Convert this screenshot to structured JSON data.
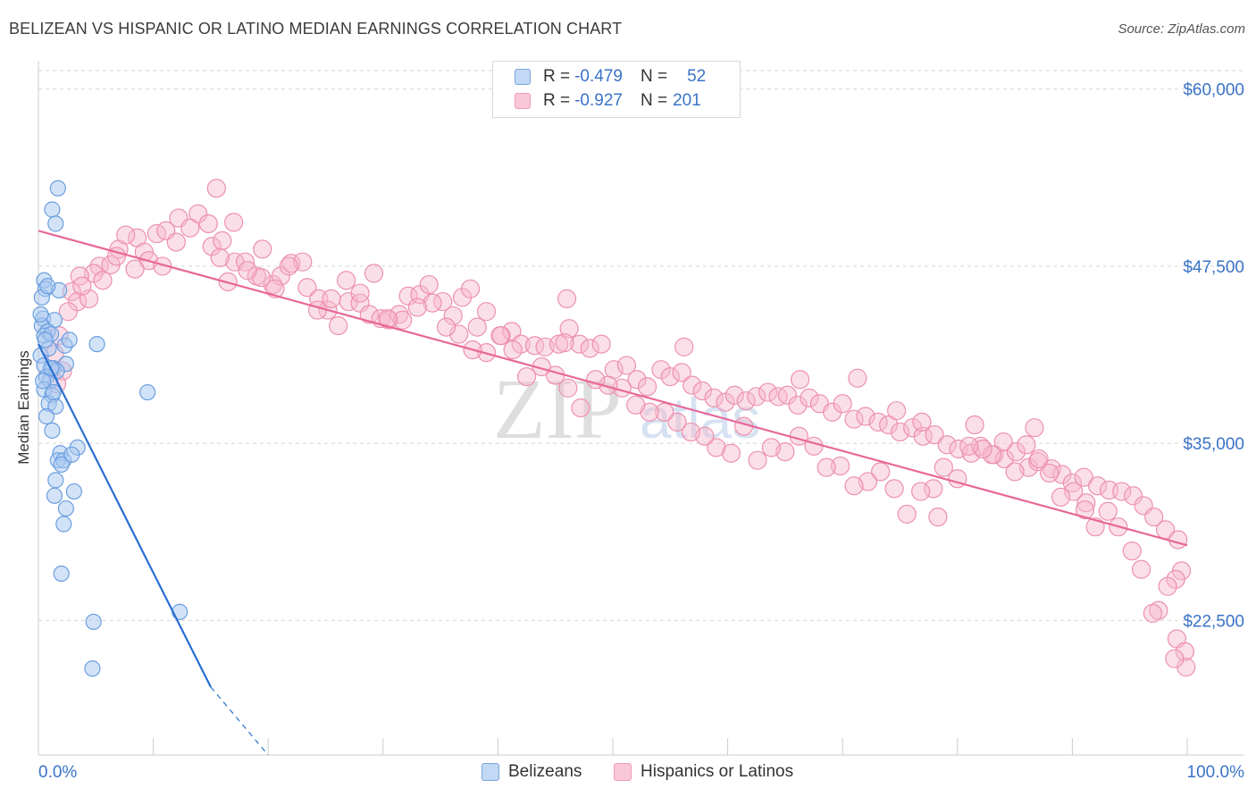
{
  "title": "BELIZEAN VS HISPANIC OR LATINO MEDIAN EARNINGS CORRELATION CHART",
  "source": "Source: ZipAtlas.com",
  "legend": {
    "rows": [
      {
        "r_label": "R =",
        "r_value": "-0.479",
        "n_label": "N =",
        "n_value": "52"
      },
      {
        "r_label": "R =",
        "r_value": "-0.927",
        "n_label": "N =",
        "n_value": "201"
      }
    ]
  },
  "bottom_legend": {
    "belizeans": "Belizeans",
    "hispanics": "Hispanics or Latinos"
  },
  "watermark": {
    "zip": "ZIP",
    "atlas": "atlas"
  },
  "colors": {
    "belizean_fill": "#a8c8f0",
    "belizean_stroke": "#6a9ee0",
    "belizean_line": "#2a6fd0",
    "hispanic_fill": "#f6b8cc",
    "hispanic_stroke": "#ec90ae",
    "hispanic_line": "#e8689a",
    "axis_label": "#3a73c7",
    "grid": "#d6d6d6"
  },
  "chart_data": {
    "type": "scatter",
    "title": "BELIZEAN VS HISPANIC OR LATINO MEDIAN EARNINGS CORRELATION CHART",
    "xlabel": "",
    "ylabel": "Median Earnings",
    "xlim": [
      0,
      100
    ],
    "ylim": [
      13000,
      62000
    ],
    "x_tick_labels": [
      "0.0%",
      "100.0%"
    ],
    "y_ticks": [
      22500,
      35000,
      47500,
      60000
    ],
    "y_tick_labels": [
      "$22,500",
      "$35,000",
      "$47,500",
      "$60,000"
    ],
    "series": [
      {
        "name": "Belizeans",
        "R": -0.479,
        "N": 52,
        "trend": {
          "x0": 0.0,
          "y0": 42000,
          "x1": 15.0,
          "y1": 17800,
          "dashed_to_x": 20.0,
          "dashed_to_y": 13000
        },
        "points": [
          [
            1.7,
            53000
          ],
          [
            1.2,
            51500
          ],
          [
            1.5,
            50500
          ],
          [
            0.5,
            46500
          ],
          [
            0.6,
            45900
          ],
          [
            0.3,
            45300
          ],
          [
            1.8,
            45800
          ],
          [
            0.4,
            43800
          ],
          [
            1.4,
            43700
          ],
          [
            0.3,
            43300
          ],
          [
            0.8,
            42900
          ],
          [
            0.5,
            42600
          ],
          [
            1.1,
            42700
          ],
          [
            2.3,
            41900
          ],
          [
            5.1,
            42000
          ],
          [
            0.2,
            41200
          ],
          [
            0.5,
            40500
          ],
          [
            2.4,
            40600
          ],
          [
            1.3,
            40300
          ],
          [
            0.7,
            39700
          ],
          [
            1.0,
            39400
          ],
          [
            0.5,
            38800
          ],
          [
            1.2,
            38400
          ],
          [
            0.9,
            37800
          ],
          [
            1.5,
            37600
          ],
          [
            0.7,
            36900
          ],
          [
            1.2,
            35900
          ],
          [
            3.4,
            34700
          ],
          [
            1.9,
            34300
          ],
          [
            1.7,
            33800
          ],
          [
            2.2,
            33800
          ],
          [
            2.0,
            33500
          ],
          [
            1.5,
            32400
          ],
          [
            3.1,
            31600
          ],
          [
            1.4,
            31300
          ],
          [
            2.4,
            30400
          ],
          [
            2.2,
            29300
          ],
          [
            9.5,
            38600
          ],
          [
            2.0,
            25800
          ],
          [
            4.8,
            22400
          ],
          [
            12.3,
            23100
          ],
          [
            4.7,
            19100
          ],
          [
            0.9,
            41700
          ],
          [
            1.6,
            40100
          ],
          [
            0.4,
            39400
          ],
          [
            1.3,
            38600
          ],
          [
            2.9,
            34200
          ],
          [
            0.2,
            44100
          ],
          [
            0.8,
            46100
          ],
          [
            2.7,
            42300
          ],
          [
            1.1,
            40300
          ],
          [
            0.6,
            42300
          ]
        ]
      },
      {
        "name": "Hispanics or Latinos",
        "R": -0.927,
        "N": 201,
        "trend": {
          "x0": 0.0,
          "y0": 50000,
          "x1": 100.0,
          "y1": 27800
        },
        "points": [
          [
            7.0,
            48700
          ],
          [
            5.3,
            47500
          ],
          [
            4.8,
            47000
          ],
          [
            3.6,
            46800
          ],
          [
            2.9,
            45700
          ],
          [
            3.4,
            45000
          ],
          [
            6.3,
            47600
          ],
          [
            8.6,
            49500
          ],
          [
            9.2,
            48500
          ],
          [
            10.3,
            49800
          ],
          [
            9.6,
            47900
          ],
          [
            11.1,
            50000
          ],
          [
            12.2,
            50900
          ],
          [
            13.9,
            51200
          ],
          [
            14.8,
            50500
          ],
          [
            15.1,
            48900
          ],
          [
            16.0,
            49300
          ],
          [
            17.1,
            47800
          ],
          [
            16.5,
            46400
          ],
          [
            15.8,
            48100
          ],
          [
            18.0,
            47800
          ],
          [
            19.0,
            46800
          ],
          [
            20.4,
            46200
          ],
          [
            19.5,
            48700
          ],
          [
            21.1,
            46800
          ],
          [
            22.0,
            47700
          ],
          [
            23.4,
            46000
          ],
          [
            24.4,
            45200
          ],
          [
            25.2,
            44400
          ],
          [
            26.1,
            43300
          ],
          [
            27.0,
            45000
          ],
          [
            28.0,
            44900
          ],
          [
            28.8,
            44100
          ],
          [
            29.8,
            43800
          ],
          [
            30.5,
            43700
          ],
          [
            31.4,
            44100
          ],
          [
            32.2,
            45400
          ],
          [
            33.2,
            45500
          ],
          [
            34.0,
            46200
          ],
          [
            35.2,
            45000
          ],
          [
            36.1,
            44000
          ],
          [
            36.9,
            45300
          ],
          [
            37.6,
            45900
          ],
          [
            38.2,
            43200
          ],
          [
            39.0,
            44300
          ],
          [
            40.3,
            42600
          ],
          [
            41.2,
            42900
          ],
          [
            42.0,
            42000
          ],
          [
            43.2,
            41900
          ],
          [
            44.1,
            41800
          ],
          [
            45.3,
            42000
          ],
          [
            46.2,
            43100
          ],
          [
            47.1,
            42000
          ],
          [
            48.0,
            41700
          ],
          [
            49.0,
            42000
          ],
          [
            50.1,
            40200
          ],
          [
            51.2,
            40500
          ],
          [
            52.1,
            39500
          ],
          [
            53.0,
            39000
          ],
          [
            54.2,
            40200
          ],
          [
            55.0,
            39700
          ],
          [
            56.0,
            40000
          ],
          [
            56.9,
            39100
          ],
          [
            57.8,
            38700
          ],
          [
            58.8,
            38200
          ],
          [
            59.8,
            37900
          ],
          [
            60.6,
            38400
          ],
          [
            61.6,
            38000
          ],
          [
            62.5,
            38300
          ],
          [
            63.5,
            38600
          ],
          [
            64.4,
            38300
          ],
          [
            65.2,
            38400
          ],
          [
            66.1,
            37700
          ],
          [
            67.1,
            38200
          ],
          [
            68.0,
            37800
          ],
          [
            69.1,
            37200
          ],
          [
            70.0,
            37800
          ],
          [
            71.0,
            36700
          ],
          [
            72.0,
            36900
          ],
          [
            73.1,
            36500
          ],
          [
            74.0,
            36300
          ],
          [
            75.0,
            35800
          ],
          [
            76.1,
            36100
          ],
          [
            77.0,
            35500
          ],
          [
            78.0,
            35600
          ],
          [
            79.1,
            34900
          ],
          [
            80.1,
            34600
          ],
          [
            81.2,
            34300
          ],
          [
            82.0,
            34800
          ],
          [
            83.2,
            34200
          ],
          [
            84.1,
            33900
          ],
          [
            85.1,
            34400
          ],
          [
            86.2,
            33300
          ],
          [
            87.0,
            33700
          ],
          [
            88.2,
            33200
          ],
          [
            89.1,
            32800
          ],
          [
            90.0,
            32200
          ],
          [
            91.0,
            32600
          ],
          [
            92.2,
            32000
          ],
          [
            93.2,
            31700
          ],
          [
            94.3,
            31600
          ],
          [
            95.3,
            31300
          ],
          [
            96.2,
            30600
          ],
          [
            97.1,
            29800
          ],
          [
            98.1,
            28900
          ],
          [
            99.2,
            28200
          ],
          [
            99.5,
            26000
          ],
          [
            99.0,
            25400
          ],
          [
            98.3,
            24900
          ],
          [
            97.5,
            23200
          ],
          [
            97.0,
            23000
          ],
          [
            99.1,
            21200
          ],
          [
            99.8,
            20300
          ],
          [
            99.9,
            19200
          ],
          [
            98.9,
            19800
          ],
          [
            96.0,
            26100
          ],
          [
            95.2,
            27400
          ],
          [
            94.0,
            29100
          ],
          [
            93.1,
            30200
          ],
          [
            92.0,
            29100
          ],
          [
            91.2,
            30800
          ],
          [
            90.1,
            31600
          ],
          [
            89.0,
            31200
          ],
          [
            88.0,
            32900
          ],
          [
            87.1,
            33900
          ],
          [
            86.0,
            34900
          ],
          [
            85.0,
            33000
          ],
          [
            84.0,
            35100
          ],
          [
            83.0,
            34200
          ],
          [
            82.2,
            34600
          ],
          [
            81.0,
            34800
          ],
          [
            80.0,
            32500
          ],
          [
            78.8,
            33300
          ],
          [
            77.9,
            31800
          ],
          [
            76.8,
            31600
          ],
          [
            75.6,
            30000
          ],
          [
            74.5,
            31800
          ],
          [
            73.3,
            33000
          ],
          [
            72.2,
            32300
          ],
          [
            71.0,
            32000
          ],
          [
            69.8,
            33400
          ],
          [
            68.6,
            33300
          ],
          [
            67.5,
            34800
          ],
          [
            66.2,
            35500
          ],
          [
            65.0,
            34400
          ],
          [
            63.8,
            34700
          ],
          [
            62.6,
            33800
          ],
          [
            61.4,
            36200
          ],
          [
            60.3,
            34300
          ],
          [
            59.0,
            34700
          ],
          [
            58.0,
            35500
          ],
          [
            56.8,
            35800
          ],
          [
            55.6,
            36500
          ],
          [
            54.5,
            37200
          ],
          [
            53.2,
            37200
          ],
          [
            52.0,
            37700
          ],
          [
            50.8,
            38900
          ],
          [
            49.6,
            39100
          ],
          [
            48.5,
            39500
          ],
          [
            47.2,
            37500
          ],
          [
            46.1,
            38900
          ],
          [
            45.0,
            39800
          ],
          [
            43.8,
            40400
          ],
          [
            42.5,
            39700
          ],
          [
            41.3,
            41600
          ],
          [
            40.2,
            42600
          ],
          [
            39.0,
            41400
          ],
          [
            37.8,
            41600
          ],
          [
            36.6,
            42700
          ],
          [
            35.5,
            43200
          ],
          [
            34.3,
            44900
          ],
          [
            33.0,
            44600
          ],
          [
            31.7,
            43700
          ],
          [
            30.4,
            43800
          ],
          [
            29.2,
            47000
          ],
          [
            28.0,
            45600
          ],
          [
            26.8,
            46500
          ],
          [
            25.5,
            45200
          ],
          [
            24.3,
            44400
          ],
          [
            23.0,
            47800
          ],
          [
            21.8,
            47500
          ],
          [
            20.6,
            45900
          ],
          [
            19.4,
            46700
          ],
          [
            18.2,
            47200
          ],
          [
            17.0,
            50600
          ],
          [
            15.5,
            53000
          ],
          [
            13.2,
            50200
          ],
          [
            12.0,
            49200
          ],
          [
            10.8,
            47500
          ],
          [
            8.4,
            47300
          ],
          [
            7.6,
            49700
          ],
          [
            6.8,
            48200
          ],
          [
            5.6,
            46500
          ],
          [
            4.4,
            45200
          ],
          [
            2.6,
            44300
          ],
          [
            1.8,
            42600
          ],
          [
            1.4,
            41300
          ],
          [
            2.1,
            40100
          ],
          [
            1.6,
            39200
          ],
          [
            3.8,
            46100
          ],
          [
            46.0,
            45200
          ],
          [
            45.8,
            42100
          ],
          [
            56.2,
            41800
          ],
          [
            66.3,
            39500
          ],
          [
            71.3,
            39600
          ],
          [
            74.7,
            37300
          ],
          [
            76.9,
            36500
          ],
          [
            81.5,
            36300
          ],
          [
            86.7,
            36100
          ],
          [
            91.1,
            30300
          ],
          [
            78.3,
            29800
          ]
        ]
      }
    ]
  }
}
